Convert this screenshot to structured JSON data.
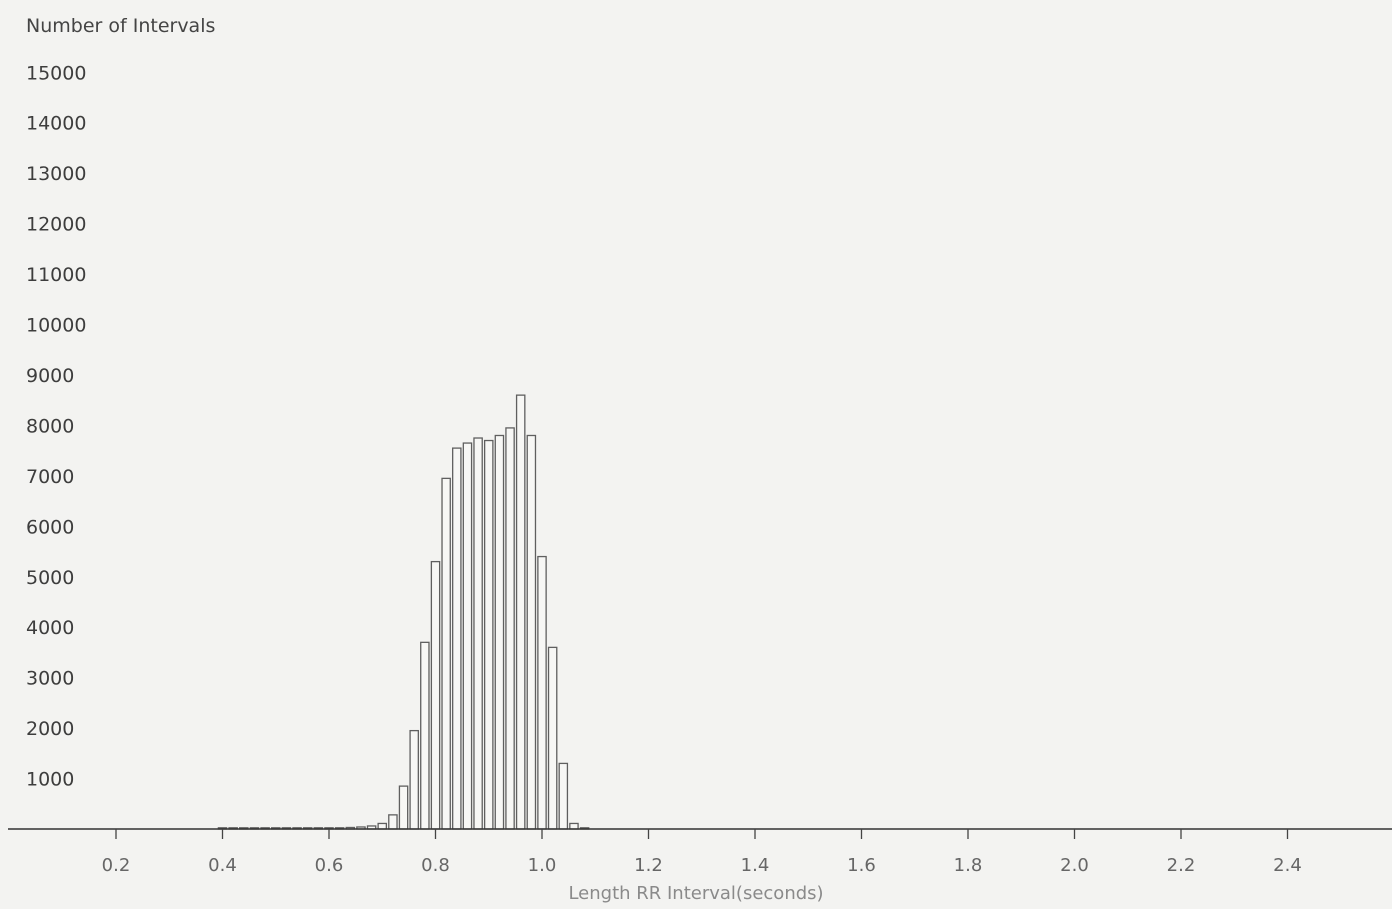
{
  "chart_data": {
    "type": "bar",
    "title": "",
    "ylabel": "Number of Intervals",
    "xlabel": "Length RR Interval(seconds)",
    "xlim": [
      0.2,
      2.5
    ],
    "ylim": [
      0,
      15000
    ],
    "grid": false,
    "bin_width": 0.02,
    "x_ticks": [
      "0.2",
      "0.4",
      "0.6",
      "0.8",
      "1.0",
      "1.2",
      "1.4",
      "1.6",
      "1.8",
      "2.0",
      "2.2",
      "2.4"
    ],
    "y_ticks": [
      "1000",
      "2000",
      "3000",
      "4000",
      "5000",
      "6000",
      "7000",
      "8000",
      "9000",
      "10000",
      "11000",
      "12000",
      "13000",
      "14000",
      "15000"
    ],
    "bins": [
      {
        "x": 0.4,
        "count": 20
      },
      {
        "x": 0.42,
        "count": 20
      },
      {
        "x": 0.44,
        "count": 20
      },
      {
        "x": 0.46,
        "count": 20
      },
      {
        "x": 0.48,
        "count": 20
      },
      {
        "x": 0.5,
        "count": 20
      },
      {
        "x": 0.52,
        "count": 20
      },
      {
        "x": 0.54,
        "count": 20
      },
      {
        "x": 0.56,
        "count": 20
      },
      {
        "x": 0.58,
        "count": 20
      },
      {
        "x": 0.6,
        "count": 20
      },
      {
        "x": 0.62,
        "count": 20
      },
      {
        "x": 0.64,
        "count": 30
      },
      {
        "x": 0.66,
        "count": 40
      },
      {
        "x": 0.68,
        "count": 60
      },
      {
        "x": 0.7,
        "count": 110
      },
      {
        "x": 0.72,
        "count": 280
      },
      {
        "x": 0.74,
        "count": 850
      },
      {
        "x": 0.76,
        "count": 1950
      },
      {
        "x": 0.78,
        "count": 3700
      },
      {
        "x": 0.8,
        "count": 5300
      },
      {
        "x": 0.82,
        "count": 6950
      },
      {
        "x": 0.84,
        "count": 7550
      },
      {
        "x": 0.86,
        "count": 7650
      },
      {
        "x": 0.88,
        "count": 7750
      },
      {
        "x": 0.9,
        "count": 7700
      },
      {
        "x": 0.92,
        "count": 7800
      },
      {
        "x": 0.94,
        "count": 7950
      },
      {
        "x": 0.96,
        "count": 8600
      },
      {
        "x": 0.98,
        "count": 7800
      },
      {
        "x": 1.0,
        "count": 5400
      },
      {
        "x": 1.02,
        "count": 3600
      },
      {
        "x": 1.04,
        "count": 1300
      },
      {
        "x": 1.06,
        "count": 110
      },
      {
        "x": 1.08,
        "count": 20
      }
    ]
  }
}
